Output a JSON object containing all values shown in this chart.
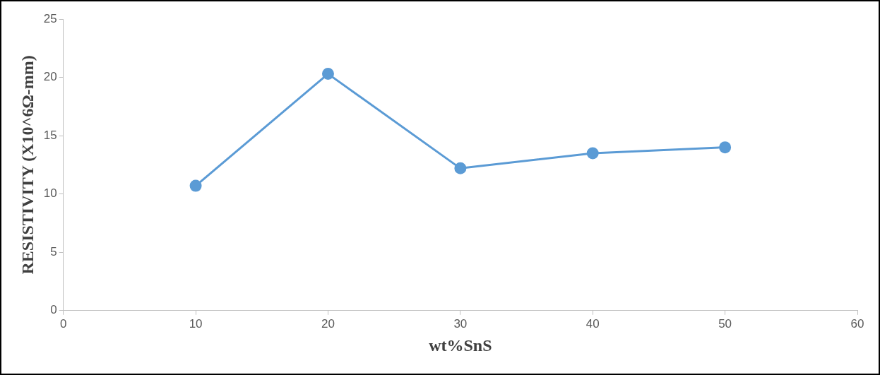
{
  "chart_data": {
    "type": "line",
    "xlabel": "wt%SnS",
    "ylabel": "RESISTIVITY (X10^6Ω-mm)",
    "x": [
      10,
      20,
      30,
      40,
      50
    ],
    "series": [
      {
        "color": "#5b9bd5",
        "values": [
          10.7,
          20.3,
          12.2,
          13.5,
          14.0
        ]
      }
    ],
    "xlim": [
      0,
      60
    ],
    "xticks": [
      0,
      10,
      20,
      30,
      40,
      50,
      60
    ],
    "ylim": [
      0,
      25
    ],
    "yticks": [
      0,
      5,
      10,
      15,
      20,
      25
    ],
    "grid": false,
    "legend": false,
    "marker": "circle",
    "line_style": "solid"
  }
}
